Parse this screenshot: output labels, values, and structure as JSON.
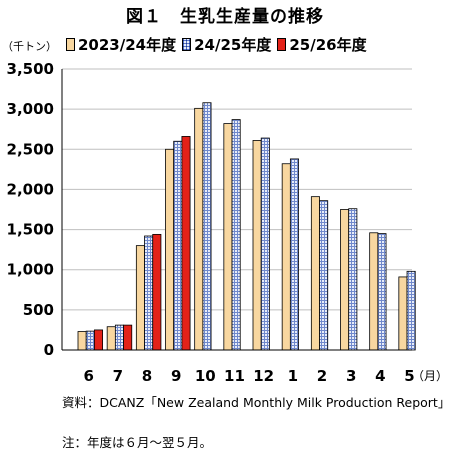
{
  "chart_data": {
    "type": "bar",
    "title": "図１　生乳生産量の推移",
    "unit_label": "（千トン）",
    "categories": [
      "6",
      "7",
      "8",
      "9",
      "10",
      "11",
      "12",
      "1",
      "2",
      "3",
      "4",
      "5"
    ],
    "x_unit": "（月）",
    "ylim": [
      0,
      3500
    ],
    "yticks": [
      "0",
      "500",
      "1,000",
      "1,500",
      "2,000",
      "2,500",
      "3,000",
      "3,500"
    ],
    "grid": true,
    "legend_position": "top",
    "series": [
      {
        "name": "2023/24年度",
        "color": "#F8D7A0",
        "values": [
          230,
          290,
          1300,
          2500,
          3010,
          2820,
          2610,
          2320,
          1910,
          1750,
          1460,
          910
        ]
      },
      {
        "name": "24/25年度",
        "color": "#5B79C6",
        "values": [
          235,
          310,
          1420,
          2600,
          3080,
          2870,
          2640,
          2380,
          1860,
          1760,
          1450,
          980
        ]
      },
      {
        "name": "25/26年度",
        "color": "#E32219",
        "values": [
          250,
          310,
          1440,
          2660,
          null,
          null,
          null,
          null,
          null,
          null,
          null,
          null
        ]
      }
    ]
  },
  "source": {
    "label": "資料：",
    "text": "DCANZ「New Zealand Monthly Milk Production Report」"
  },
  "note": {
    "label": "注：",
    "text": "年度は６月～翌５月。"
  }
}
